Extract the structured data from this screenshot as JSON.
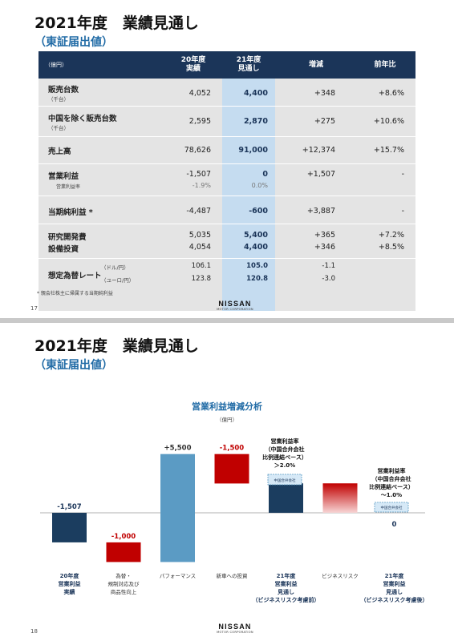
{
  "slide1": {
    "title": "2021年度　業績見通し",
    "subtitle": "（東証届出値）",
    "header": {
      "unit": "（億円）",
      "col_actual": [
        "20年度",
        "実績"
      ],
      "col_forecast": [
        "21年度",
        "見通し"
      ],
      "col_change": "増減",
      "col_yoy": "前年比"
    },
    "rows": [
      {
        "label": "販売台数",
        "sub": "（千台）",
        "actual": "4,052",
        "forecast": "4,400",
        "change": "+348",
        "yoy": "+8.6%"
      },
      {
        "label": "中国を除く販売台数",
        "sub": "（千台）",
        "actual": "2,595",
        "forecast": "2,870",
        "change": "+275",
        "yoy": "+10.6%"
      },
      {
        "label": "売上高",
        "actual": "78,626",
        "forecast": "91,000",
        "change": "+12,374",
        "yoy": "+15.7%"
      },
      {
        "label": "営業利益",
        "actual": "-1,507",
        "forecast": "0",
        "change": "+1,507",
        "yoy": "-"
      },
      {
        "label": "当期純利益 *",
        "actual": "-4,487",
        "forecast": "-600",
        "change": "+3,887",
        "yoy": "-"
      }
    ],
    "op_margin": {
      "label": "営業利益率",
      "actual": "-1.9%",
      "forecast": "0.0%"
    },
    "rd": {
      "label": "研究開発費",
      "actual": "5,035",
      "forecast": "5,400",
      "change": "+365",
      "yoy": "+7.2%"
    },
    "capex": {
      "label": "設備投資",
      "actual": "4,054",
      "forecast": "4,400",
      "change": "+346",
      "yoy": "+8.5%"
    },
    "fx": {
      "label": "想定為替レート",
      "usd": "（ドル/円）",
      "eur": "（ユーロ/円）",
      "usd_actual": "106.1",
      "usd_forecast": "105.0",
      "usd_change": "-1.1",
      "eur_actual": "123.8",
      "eur_forecast": "120.8",
      "eur_change": "-3.0"
    },
    "footnote": "* 親会社株主に帰属する当期純利益",
    "page": "17",
    "logo": "NISSAN",
    "logo_sub": "MOTOR CORPORATION"
  },
  "slide2": {
    "title": "2021年度　業績見通し",
    "subtitle": "（東証届出値）",
    "chart_title": "営業利益増減分析",
    "unit": "（億円）",
    "page": "18",
    "logo": "NISSAN",
    "logo_sub": "MOTOR CORPORATION",
    "note1": [
      "営業利益率",
      "（中国合弁会社",
      "比例連結ベース）",
      "＞2.0%"
    ],
    "note2": [
      "営業利益率",
      "（中国合弁会社",
      "比例連結ベース）",
      "～1.0%"
    ],
    "jv_label": "中国合弁会社"
  },
  "chart_data": {
    "type": "waterfall",
    "title": "営業利益増減分析",
    "unit": "（億円）",
    "steps": [
      {
        "label": [
          "20年度",
          "営業利益",
          "実績"
        ],
        "value": -1507,
        "value_label": "-1,507",
        "kind": "total",
        "color": "#1b3d5f"
      },
      {
        "label": [
          "為替・",
          "規制対応及び",
          "商品性向上"
        ],
        "value": -1000,
        "value_label": "-1,000",
        "kind": "delta",
        "color": "#c00000"
      },
      {
        "label": [
          "パフォーマンス"
        ],
        "value": 5500,
        "value_label": "+5,500",
        "kind": "delta",
        "color": "#5b9bc4"
      },
      {
        "label": [
          "新車への投資"
        ],
        "value": -1500,
        "value_label": "-1,500",
        "kind": "delta",
        "color": "#c00000"
      },
      {
        "label": [
          "21年度",
          "営業利益",
          "見通し",
          "（ビジネスリスク考慮前）"
        ],
        "value": 1500,
        "kind": "total",
        "color": "#1b3d5f"
      },
      {
        "label": [
          "ビジネスリスク"
        ],
        "value": -1500,
        "kind": "delta",
        "color": "#c00000"
      },
      {
        "label": [
          "21年度",
          "営業利益",
          "見通し",
          "（ビジネスリスク考慮後）"
        ],
        "value": 0,
        "value_label": "0",
        "kind": "total",
        "color": "#1b3d5f"
      }
    ]
  }
}
